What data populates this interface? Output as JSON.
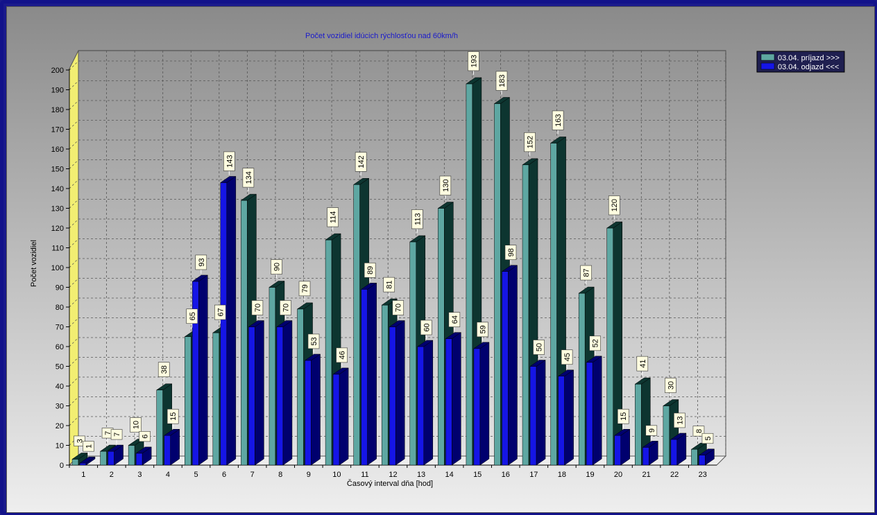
{
  "chart_data": {
    "type": "bar",
    "title": "Počet vozidiel idúcich rýchlosťou nad 60km/h",
    "xlabel": "Časový interval dňa [hod]",
    "ylabel": "Počet vozidiel",
    "ylim": [
      0,
      200
    ],
    "y_ticks": [
      "0",
      "10",
      "20",
      "30",
      "40",
      "50",
      "60",
      "70",
      "80",
      "90",
      "100",
      "110",
      "120",
      "130",
      "140",
      "150",
      "160",
      "170",
      "180",
      "190",
      "200"
    ],
    "categories": [
      "1",
      "2",
      "3",
      "4",
      "5",
      "6",
      "7",
      "8",
      "9",
      "10",
      "11",
      "12",
      "13",
      "14",
      "15",
      "16",
      "17",
      "18",
      "19",
      "20",
      "21",
      "22",
      "23"
    ],
    "series": [
      {
        "name": "03.04.  príjazd >>>",
        "color": "#5ea7a2",
        "side": "#0d3530",
        "values": [
          3,
          7,
          10,
          38,
          65,
          67,
          134,
          90,
          79,
          114,
          142,
          81,
          113,
          130,
          193,
          183,
          152,
          163,
          87,
          120,
          41,
          30,
          8
        ],
        "labels": [
          "3",
          "7",
          "10",
          "38",
          "65",
          "67",
          "134",
          "90",
          "79",
          "114",
          "142",
          "81",
          "113",
          "130",
          "193",
          "183",
          "152",
          "163",
          "87",
          "120",
          "41",
          "30",
          "8"
        ]
      },
      {
        "name": "03.04.  odjazd <<<",
        "color": "#1515e6",
        "side": "#00006e",
        "values": [
          1,
          7,
          6,
          15,
          93,
          143,
          70,
          70,
          53,
          46,
          89,
          70,
          60,
          64,
          59,
          98,
          50,
          45,
          52,
          15,
          9,
          13,
          5
        ],
        "labels": [
          "1",
          "7",
          "6",
          "15",
          "93",
          "143",
          "70",
          "70",
          "53",
          "46",
          "89",
          "70",
          "60",
          "64",
          "59",
          "98",
          "50",
          "45",
          "52",
          "15",
          "9",
          "13",
          "5"
        ]
      }
    ],
    "grid": true,
    "legend": "top-right"
  }
}
